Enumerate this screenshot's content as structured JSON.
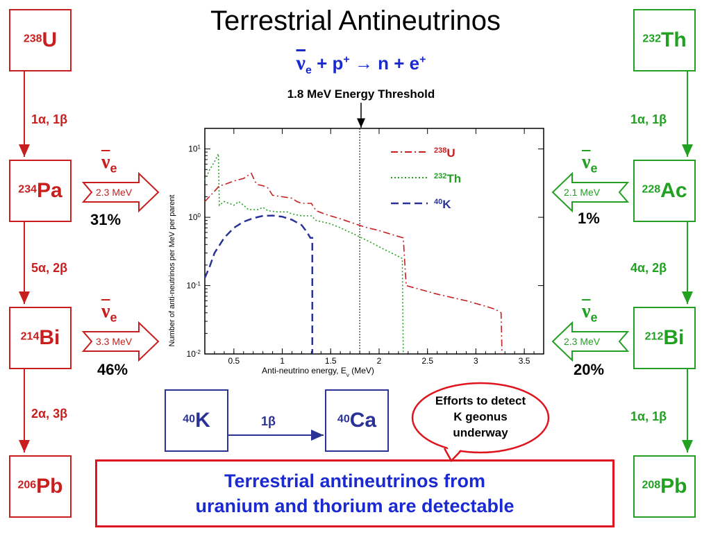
{
  "title": "Terrestrial Antineutrinos",
  "reaction": {
    "nu": "ν",
    "sub": "e",
    "rest": " + p",
    "p_sup": "+",
    "arrow": " → n + e",
    "e_sup": "+"
  },
  "threshold_label": "1.8 MeV Energy Threshold",
  "uranium_chain": {
    "nodes": [
      {
        "mass": "238",
        "sym": "U"
      },
      {
        "mass": "234",
        "sym": "Pa"
      },
      {
        "mass": "214",
        "sym": "Bi"
      },
      {
        "mass": "206",
        "sym": "Pb"
      }
    ],
    "decays": [
      "1α, 1β",
      "5α, 2β",
      "2α, 3β"
    ],
    "emissions": [
      {
        "nu": "ν",
        "sub": "e",
        "energy": "2.3 MeV",
        "percent": "31%"
      },
      {
        "nu": "ν",
        "sub": "e",
        "energy": "3.3 MeV",
        "percent": "46%"
      }
    ]
  },
  "thorium_chain": {
    "nodes": [
      {
        "mass": "232",
        "sym": "Th"
      },
      {
        "mass": "228",
        "sym": "Ac"
      },
      {
        "mass": "212",
        "sym": "Bi"
      },
      {
        "mass": "208",
        "sym": "Pb"
      }
    ],
    "decays": [
      "1α, 1β",
      "4α, 2β",
      "1α, 1β"
    ],
    "emissions": [
      {
        "nu": "ν",
        "sub": "e",
        "energy": "2.1 MeV",
        "percent": "1%"
      },
      {
        "nu": "ν",
        "sub": "e",
        "energy": "2.3 MeV",
        "percent": "20%"
      }
    ]
  },
  "potassium": {
    "from": {
      "mass": "40",
      "sym": "K"
    },
    "to": {
      "mass": "40",
      "sym": "Ca"
    },
    "decay": "1β"
  },
  "bubble": {
    "line1": "Efforts to detect",
    "line2": "K geonus",
    "line3": "underway"
  },
  "conclusion": {
    "line1": "Terrestrial antineutrinos from",
    "line2": "uranium and thorium are detectable"
  },
  "colors": {
    "uranium": "#c81e1e",
    "thorium": "#22a022",
    "potassium": "#2a3296",
    "text_blue": "#1a2ad0",
    "box_red": "#e0141e"
  },
  "chart_data": {
    "type": "line",
    "xlabel": "Anti-neutrino energy, E",
    "xlabel_sub": "ν",
    "xlabel_unit": " (MeV)",
    "ylabel": "Number of anti-neutrinos per MeV per parent",
    "xlim": [
      0.2,
      3.7
    ],
    "ylim": [
      0.01,
      20
    ],
    "yscale": "log",
    "x_ticks": [
      "0.5",
      "1",
      "1.5",
      "2",
      "2.5",
      "3",
      "3.5"
    ],
    "x_tick_values": [
      0.5,
      1,
      1.5,
      2,
      2.5,
      3,
      3.5
    ],
    "y_ticks": [
      {
        "v": 0.01,
        "base": "10",
        "exp": "-2"
      },
      {
        "v": 0.1,
        "base": "10",
        "exp": "-1"
      },
      {
        "v": 1,
        "base": "10",
        "exp": "0"
      },
      {
        "v": 10,
        "base": "10",
        "exp": "1"
      }
    ],
    "threshold_x": 1.8,
    "series": [
      {
        "name": "U",
        "mass": "238",
        "color": "#c81e1e",
        "dash": "10,4,2,4",
        "points": [
          [
            0.2,
            1.7
          ],
          [
            0.3,
            2.4
          ],
          [
            0.35,
            2.9
          ],
          [
            0.4,
            3.0
          ],
          [
            0.5,
            3.4
          ],
          [
            0.6,
            3.7
          ],
          [
            0.68,
            4.4
          ],
          [
            0.72,
            3.3
          ],
          [
            0.75,
            3.0
          ],
          [
            0.8,
            2.9
          ],
          [
            0.85,
            2.7
          ],
          [
            0.9,
            2.1
          ],
          [
            1.0,
            2.0
          ],
          [
            1.1,
            1.9
          ],
          [
            1.15,
            1.7
          ],
          [
            1.2,
            1.6
          ],
          [
            1.3,
            1.6
          ],
          [
            1.35,
            1.25
          ],
          [
            1.45,
            1.1
          ],
          [
            1.6,
            0.95
          ],
          [
            1.7,
            0.85
          ],
          [
            1.85,
            0.72
          ],
          [
            2.0,
            0.64
          ],
          [
            2.15,
            0.55
          ],
          [
            2.25,
            0.5
          ],
          [
            2.28,
            0.1
          ],
          [
            2.6,
            0.075
          ],
          [
            2.9,
            0.06
          ],
          [
            3.1,
            0.05
          ],
          [
            3.2,
            0.045
          ],
          [
            3.26,
            0.04
          ],
          [
            3.27,
            0.01
          ]
        ]
      },
      {
        "name": "Th",
        "mass": "232",
        "color": "#22a022",
        "dash": "2,3",
        "points": [
          [
            0.2,
            3.5
          ],
          [
            0.25,
            5.0
          ],
          [
            0.3,
            6.5
          ],
          [
            0.34,
            8.5
          ],
          [
            0.35,
            1.5
          ],
          [
            0.4,
            1.7
          ],
          [
            0.45,
            1.6
          ],
          [
            0.5,
            1.5
          ],
          [
            0.55,
            1.7
          ],
          [
            0.6,
            1.5
          ],
          [
            0.65,
            1.3
          ],
          [
            0.75,
            1.3
          ],
          [
            0.8,
            1.4
          ],
          [
            0.85,
            1.25
          ],
          [
            0.95,
            1.2
          ],
          [
            1.05,
            1.2
          ],
          [
            1.1,
            1.12
          ],
          [
            1.2,
            1.05
          ],
          [
            1.3,
            1.05
          ],
          [
            1.35,
            0.9
          ],
          [
            1.5,
            0.8
          ],
          [
            1.6,
            0.7
          ],
          [
            1.75,
            0.56
          ],
          [
            1.9,
            0.44
          ],
          [
            2.05,
            0.34
          ],
          [
            2.15,
            0.29
          ],
          [
            2.24,
            0.25
          ],
          [
            2.25,
            0.01
          ]
        ]
      },
      {
        "name": "K",
        "mass": "40",
        "color": "#2a3296",
        "dash": "11,6",
        "points": [
          [
            0.2,
            0.13
          ],
          [
            0.25,
            0.19
          ],
          [
            0.3,
            0.3
          ],
          [
            0.4,
            0.5
          ],
          [
            0.5,
            0.7
          ],
          [
            0.6,
            0.86
          ],
          [
            0.7,
            0.97
          ],
          [
            0.8,
            1.05
          ],
          [
            0.9,
            1.06
          ],
          [
            1.0,
            1.02
          ],
          [
            1.1,
            0.92
          ],
          [
            1.2,
            0.77
          ],
          [
            1.25,
            0.62
          ],
          [
            1.29,
            0.5
          ],
          [
            1.31,
            0.5
          ],
          [
            1.31,
            0.01
          ]
        ]
      }
    ]
  }
}
